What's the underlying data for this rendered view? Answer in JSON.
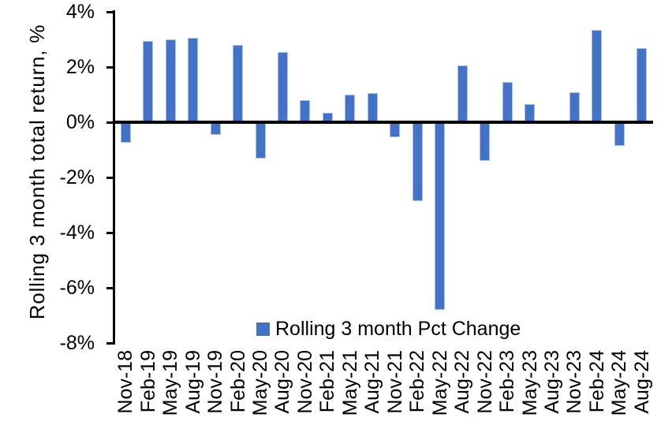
{
  "chart_data": {
    "type": "bar",
    "title": "",
    "ylabel": "Rolling 3 month total return, %",
    "xlabel": "",
    "categories": [
      "Nov-18",
      "Feb-19",
      "May-19",
      "Aug-19",
      "Nov-19",
      "Feb-20",
      "May-20",
      "Aug-20",
      "Nov-20",
      "Feb-21",
      "May-21",
      "Aug-21",
      "Nov-21",
      "Feb-22",
      "May-22",
      "Aug-22",
      "Nov-22",
      "Feb-23",
      "May-23",
      "Aug-23",
      "Nov-23",
      "Feb-24",
      "May-24",
      "Aug-24"
    ],
    "series": [
      {
        "name": "Rolling 3 month Pct Change",
        "values": [
          -0.75,
          2.95,
          3.0,
          3.05,
          -0.45,
          2.8,
          -1.3,
          2.55,
          0.8,
          0.35,
          1.0,
          1.05,
          -0.55,
          -2.85,
          -6.8,
          2.05,
          -1.4,
          1.45,
          0.65,
          0.0,
          1.1,
          3.35,
          -0.85,
          2.7
        ]
      }
    ],
    "ylim": [
      -8,
      4
    ],
    "yticks": [
      4,
      2,
      0,
      -2,
      -4,
      -6,
      -8
    ],
    "ytick_labels": [
      "4%",
      "2%",
      "0%",
      "-2%",
      "-4%",
      "-6%",
      "-8%"
    ],
    "grid": false,
    "legend_position": "bottom",
    "bar_color": "#4472C4",
    "bar_border_color": "#A6BFE8",
    "axis_color": "#000000",
    "background_color": "#FFFFFF"
  }
}
